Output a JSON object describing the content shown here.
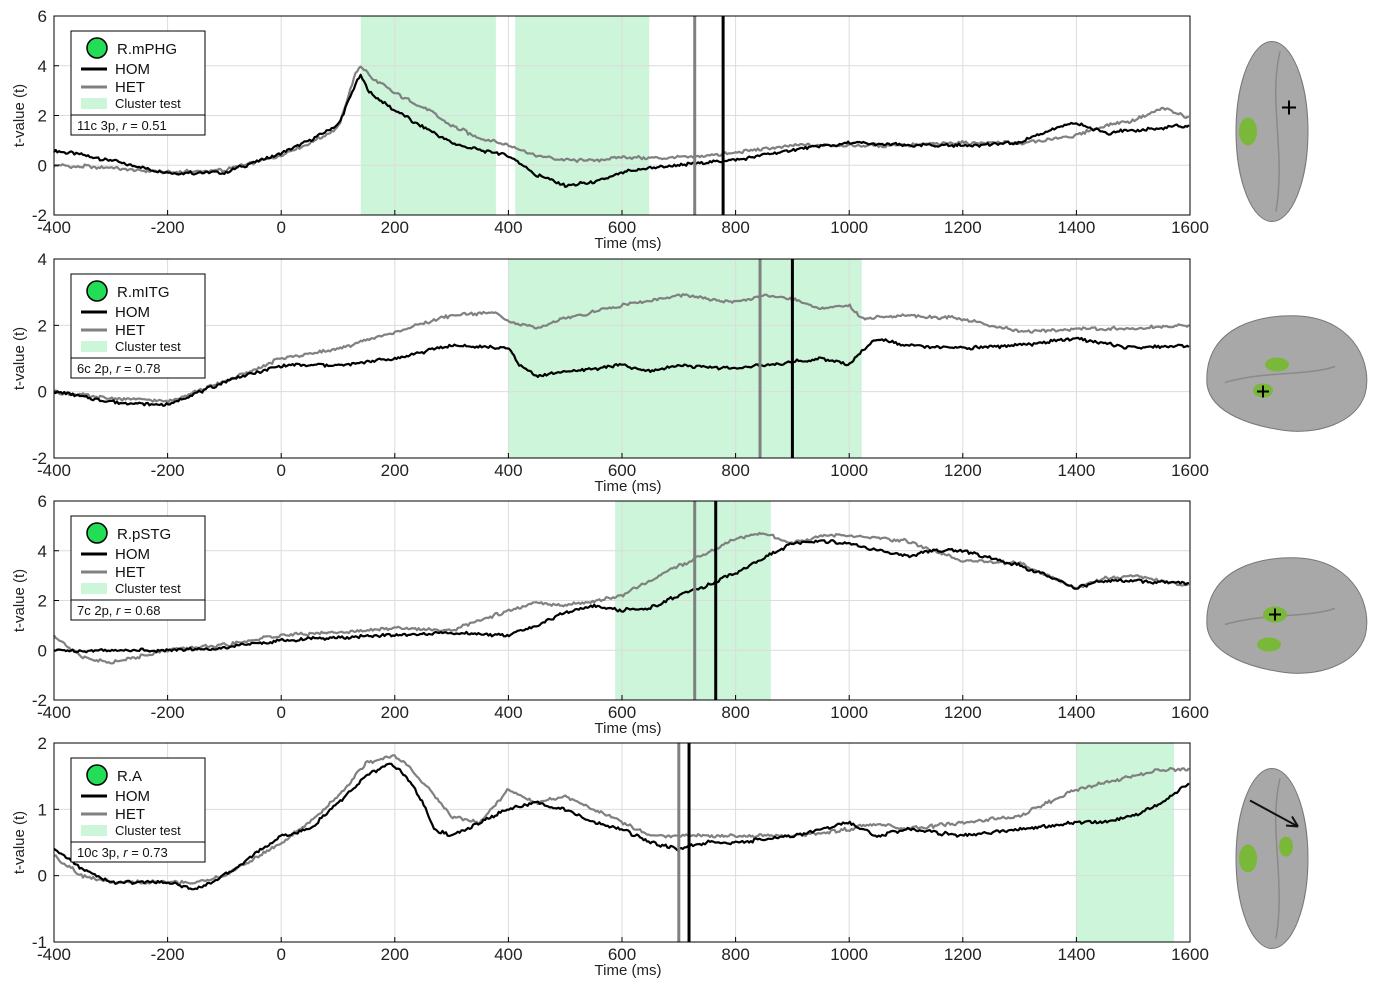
{
  "colors": {
    "hom": "#000000",
    "het": "#808080",
    "cluster": "#ccf5d9",
    "region_dot": "#22dd55",
    "brain": "#a8a8a8",
    "brain_highlight": "#7ab83a"
  },
  "legend_labels": {
    "hom": "HOM",
    "het": "HET",
    "cluster": "Cluster test"
  },
  "chart_data": [
    {
      "type": "line",
      "region": "R.mPHG",
      "stats_prefix": "11c 3p, ",
      "stats_r": "r",
      "stats_value": " = 0.51",
      "xlabel": "Time (ms)",
      "ylabel": "t-value (t)",
      "xlim": [
        -400,
        1600
      ],
      "ylim": [
        -2,
        6
      ],
      "xticks": [
        "-400",
        "-200",
        "0",
        "200",
        "400",
        "600",
        "800",
        "1000",
        "1200",
        "1400",
        "1600"
      ],
      "yticks": [
        "-2",
        "0",
        "2",
        "4",
        "6"
      ],
      "grid": true,
      "legend_position": "top-left",
      "cluster_intervals": [
        [
          140,
          378
        ],
        [
          412,
          648
        ]
      ],
      "vlines": [
        {
          "series": "HET",
          "x": 728
        },
        {
          "series": "HOM",
          "x": 778
        }
      ],
      "brain_view": "medial",
      "brain_marker": "cross",
      "series": [
        {
          "name": "HOM",
          "x": [
            -400,
            -300,
            -200,
            -100,
            0,
            50,
            100,
            130,
            140,
            160,
            200,
            260,
            300,
            350,
            400,
            450,
            500,
            550,
            600,
            650,
            700,
            800,
            900,
            1000,
            1100,
            1200,
            1300,
            1350,
            1400,
            1450,
            1500,
            1600
          ],
          "y": [
            0.6,
            0.2,
            -0.3,
            -0.3,
            0.5,
            1.0,
            1.6,
            3.2,
            3.6,
            2.8,
            2.2,
            1.4,
            0.9,
            0.6,
            0.4,
            -0.4,
            -0.8,
            -0.7,
            -0.3,
            -0.1,
            0.0,
            0.2,
            0.6,
            0.9,
            0.8,
            0.8,
            0.9,
            1.4,
            1.7,
            1.3,
            1.4,
            1.6
          ]
        },
        {
          "name": "HET",
          "x": [
            -400,
            -300,
            -200,
            -100,
            0,
            50,
            100,
            130,
            140,
            160,
            200,
            260,
            300,
            350,
            400,
            450,
            500,
            550,
            600,
            650,
            700,
            800,
            900,
            1000,
            1100,
            1200,
            1300,
            1350,
            1400,
            1450,
            1500,
            1550,
            1600
          ],
          "y": [
            0.0,
            -0.1,
            -0.3,
            -0.2,
            0.4,
            0.9,
            1.5,
            3.6,
            4.0,
            3.5,
            2.9,
            2.2,
            1.6,
            1.1,
            0.8,
            0.4,
            0.2,
            0.2,
            0.3,
            0.3,
            0.3,
            0.5,
            0.8,
            0.8,
            0.8,
            0.9,
            0.9,
            1.0,
            1.2,
            1.6,
            1.8,
            2.3,
            1.9
          ]
        }
      ]
    },
    {
      "type": "line",
      "region": "R.mITG",
      "stats_prefix": "6c 2p, ",
      "stats_r": "r",
      "stats_value": " = 0.78",
      "xlabel": "Time (ms)",
      "ylabel": "t-value (t)",
      "xlim": [
        -400,
        1600
      ],
      "ylim": [
        -2,
        4
      ],
      "xticks": [
        "-400",
        "-200",
        "0",
        "200",
        "400",
        "600",
        "800",
        "1000",
        "1200",
        "1400",
        "1600"
      ],
      "yticks": [
        "-2",
        "0",
        "2",
        "4"
      ],
      "grid": true,
      "legend_position": "top-left",
      "cluster_intervals": [
        [
          400,
          1022
        ]
      ],
      "vlines": [
        {
          "series": "HET",
          "x": 843
        },
        {
          "series": "HOM",
          "x": 900
        }
      ],
      "brain_view": "lateral",
      "brain_marker": "cross",
      "series": [
        {
          "name": "HOM",
          "x": [
            -400,
            -300,
            -200,
            -100,
            0,
            100,
            200,
            300,
            400,
            420,
            450,
            500,
            600,
            650,
            700,
            800,
            900,
            950,
            1000,
            1020,
            1050,
            1100,
            1200,
            1300,
            1400,
            1500,
            1600
          ],
          "y": [
            0.0,
            -0.3,
            -0.4,
            0.3,
            0.8,
            0.8,
            1.0,
            1.4,
            1.3,
            0.8,
            0.5,
            0.6,
            0.8,
            0.6,
            0.8,
            0.7,
            0.9,
            1.0,
            0.8,
            1.2,
            1.6,
            1.4,
            1.3,
            1.4,
            1.6,
            1.3,
            1.4
          ]
        },
        {
          "name": "HET",
          "x": [
            -400,
            -300,
            -200,
            -100,
            0,
            100,
            200,
            300,
            380,
            400,
            450,
            500,
            600,
            700,
            800,
            850,
            900,
            950,
            1000,
            1020,
            1100,
            1200,
            1300,
            1400,
            1500,
            1600
          ],
          "y": [
            0.0,
            -0.2,
            -0.3,
            0.3,
            1.0,
            1.3,
            1.8,
            2.3,
            2.4,
            2.1,
            1.9,
            2.2,
            2.6,
            2.9,
            2.7,
            2.9,
            2.8,
            2.5,
            2.6,
            2.2,
            2.3,
            2.2,
            1.8,
            1.9,
            1.9,
            2.0
          ]
        }
      ]
    },
    {
      "type": "line",
      "region": "R.pSTG",
      "stats_prefix": "7c 2p, ",
      "stats_r": "r",
      "stats_value": " = 0.68",
      "xlabel": "Time (ms)",
      "ylabel": "t-value (t)",
      "xlim": [
        -400,
        1600
      ],
      "ylim": [
        -2,
        6
      ],
      "xticks": [
        "-400",
        "-200",
        "0",
        "200",
        "400",
        "600",
        "800",
        "1000",
        "1200",
        "1400",
        "1600"
      ],
      "yticks": [
        "-2",
        "0",
        "2",
        "4",
        "6"
      ],
      "grid": true,
      "legend_position": "top-left",
      "cluster_intervals": [
        [
          588,
          862
        ]
      ],
      "vlines": [
        {
          "series": "HET",
          "x": 728
        },
        {
          "series": "HOM",
          "x": 765
        }
      ],
      "brain_view": "lateral",
      "brain_marker": "cross",
      "series": [
        {
          "name": "HOM",
          "x": [
            -400,
            -300,
            -200,
            -100,
            0,
            100,
            200,
            300,
            400,
            450,
            500,
            550,
            600,
            650,
            700,
            750,
            800,
            850,
            900,
            950,
            1000,
            1050,
            1100,
            1150,
            1200,
            1300,
            1350,
            1400,
            1450,
            1500,
            1600
          ],
          "y": [
            0.0,
            0.0,
            0.0,
            0.1,
            0.4,
            0.5,
            0.6,
            0.7,
            0.6,
            1.0,
            1.5,
            1.8,
            1.6,
            1.7,
            2.2,
            2.6,
            3.1,
            3.7,
            4.3,
            4.4,
            4.3,
            4.0,
            3.8,
            4.0,
            4.0,
            3.4,
            3.0,
            2.5,
            2.8,
            2.8,
            2.7
          ]
        },
        {
          "name": "HET",
          "x": [
            -400,
            -350,
            -300,
            -200,
            -100,
            0,
            100,
            200,
            300,
            400,
            450,
            500,
            600,
            650,
            700,
            750,
            800,
            850,
            900,
            950,
            1000,
            1100,
            1150,
            1200,
            1300,
            1350,
            1400,
            1450,
            1500,
            1600
          ],
          "y": [
            0.6,
            -0.3,
            -0.5,
            0.0,
            0.2,
            0.6,
            0.7,
            0.9,
            0.8,
            1.6,
            1.9,
            1.8,
            2.2,
            2.8,
            3.4,
            3.9,
            4.5,
            4.7,
            4.3,
            4.6,
            4.6,
            4.4,
            4.0,
            3.6,
            3.5,
            3.0,
            2.5,
            2.9,
            3.0,
            2.6
          ]
        }
      ]
    },
    {
      "type": "line",
      "region": "R.A",
      "stats_prefix": "10c 3p, ",
      "stats_r": "r",
      "stats_value": " = 0.73",
      "xlabel": "Time (ms)",
      "ylabel": "t-value (t)",
      "xlim": [
        -400,
        1600
      ],
      "ylim": [
        -1,
        2
      ],
      "xticks": [
        "-400",
        "-200",
        "0",
        "200",
        "400",
        "600",
        "800",
        "1000",
        "1200",
        "1400",
        "1600"
      ],
      "yticks": [
        "-1",
        "0",
        "1",
        "2"
      ],
      "grid": true,
      "legend_position": "top-left",
      "cluster_intervals": [
        [
          1400,
          1572
        ]
      ],
      "vlines": [
        {
          "series": "HET",
          "x": 700
        },
        {
          "series": "HOM",
          "x": 718
        }
      ],
      "brain_view": "medial",
      "brain_marker": "arrow",
      "series": [
        {
          "name": "HOM",
          "x": [
            -400,
            -350,
            -300,
            -200,
            -150,
            -100,
            0,
            50,
            100,
            150,
            190,
            220,
            250,
            270,
            300,
            350,
            400,
            450,
            500,
            550,
            600,
            650,
            700,
            750,
            800,
            900,
            1000,
            1050,
            1100,
            1200,
            1300,
            1400,
            1450,
            1500,
            1550,
            1600
          ],
          "y": [
            0.4,
            0.1,
            -0.1,
            -0.1,
            -0.2,
            0.0,
            0.6,
            0.7,
            1.1,
            1.5,
            1.7,
            1.5,
            1.1,
            0.7,
            0.6,
            0.8,
            1.0,
            1.1,
            1.0,
            0.8,
            0.7,
            0.5,
            0.4,
            0.5,
            0.5,
            0.6,
            0.8,
            0.6,
            0.7,
            0.6,
            0.7,
            0.8,
            0.8,
            0.9,
            1.1,
            1.4
          ]
        },
        {
          "name": "HET",
          "x": [
            -400,
            -350,
            -300,
            -200,
            -150,
            -100,
            0,
            50,
            100,
            150,
            200,
            230,
            260,
            300,
            350,
            400,
            450,
            500,
            550,
            600,
            650,
            700,
            750,
            800,
            900,
            1000,
            1050,
            1100,
            1200,
            1300,
            1400,
            1450,
            1500,
            1550,
            1600
          ],
          "y": [
            0.3,
            0.0,
            -0.1,
            -0.1,
            -0.1,
            0.0,
            0.5,
            0.8,
            1.2,
            1.7,
            1.8,
            1.6,
            1.3,
            0.9,
            0.8,
            1.3,
            1.1,
            1.2,
            1.0,
            0.8,
            0.6,
            0.6,
            0.6,
            0.6,
            0.6,
            0.7,
            0.8,
            0.7,
            0.8,
            0.9,
            1.3,
            1.4,
            1.5,
            1.6,
            1.6
          ]
        }
      ]
    }
  ]
}
